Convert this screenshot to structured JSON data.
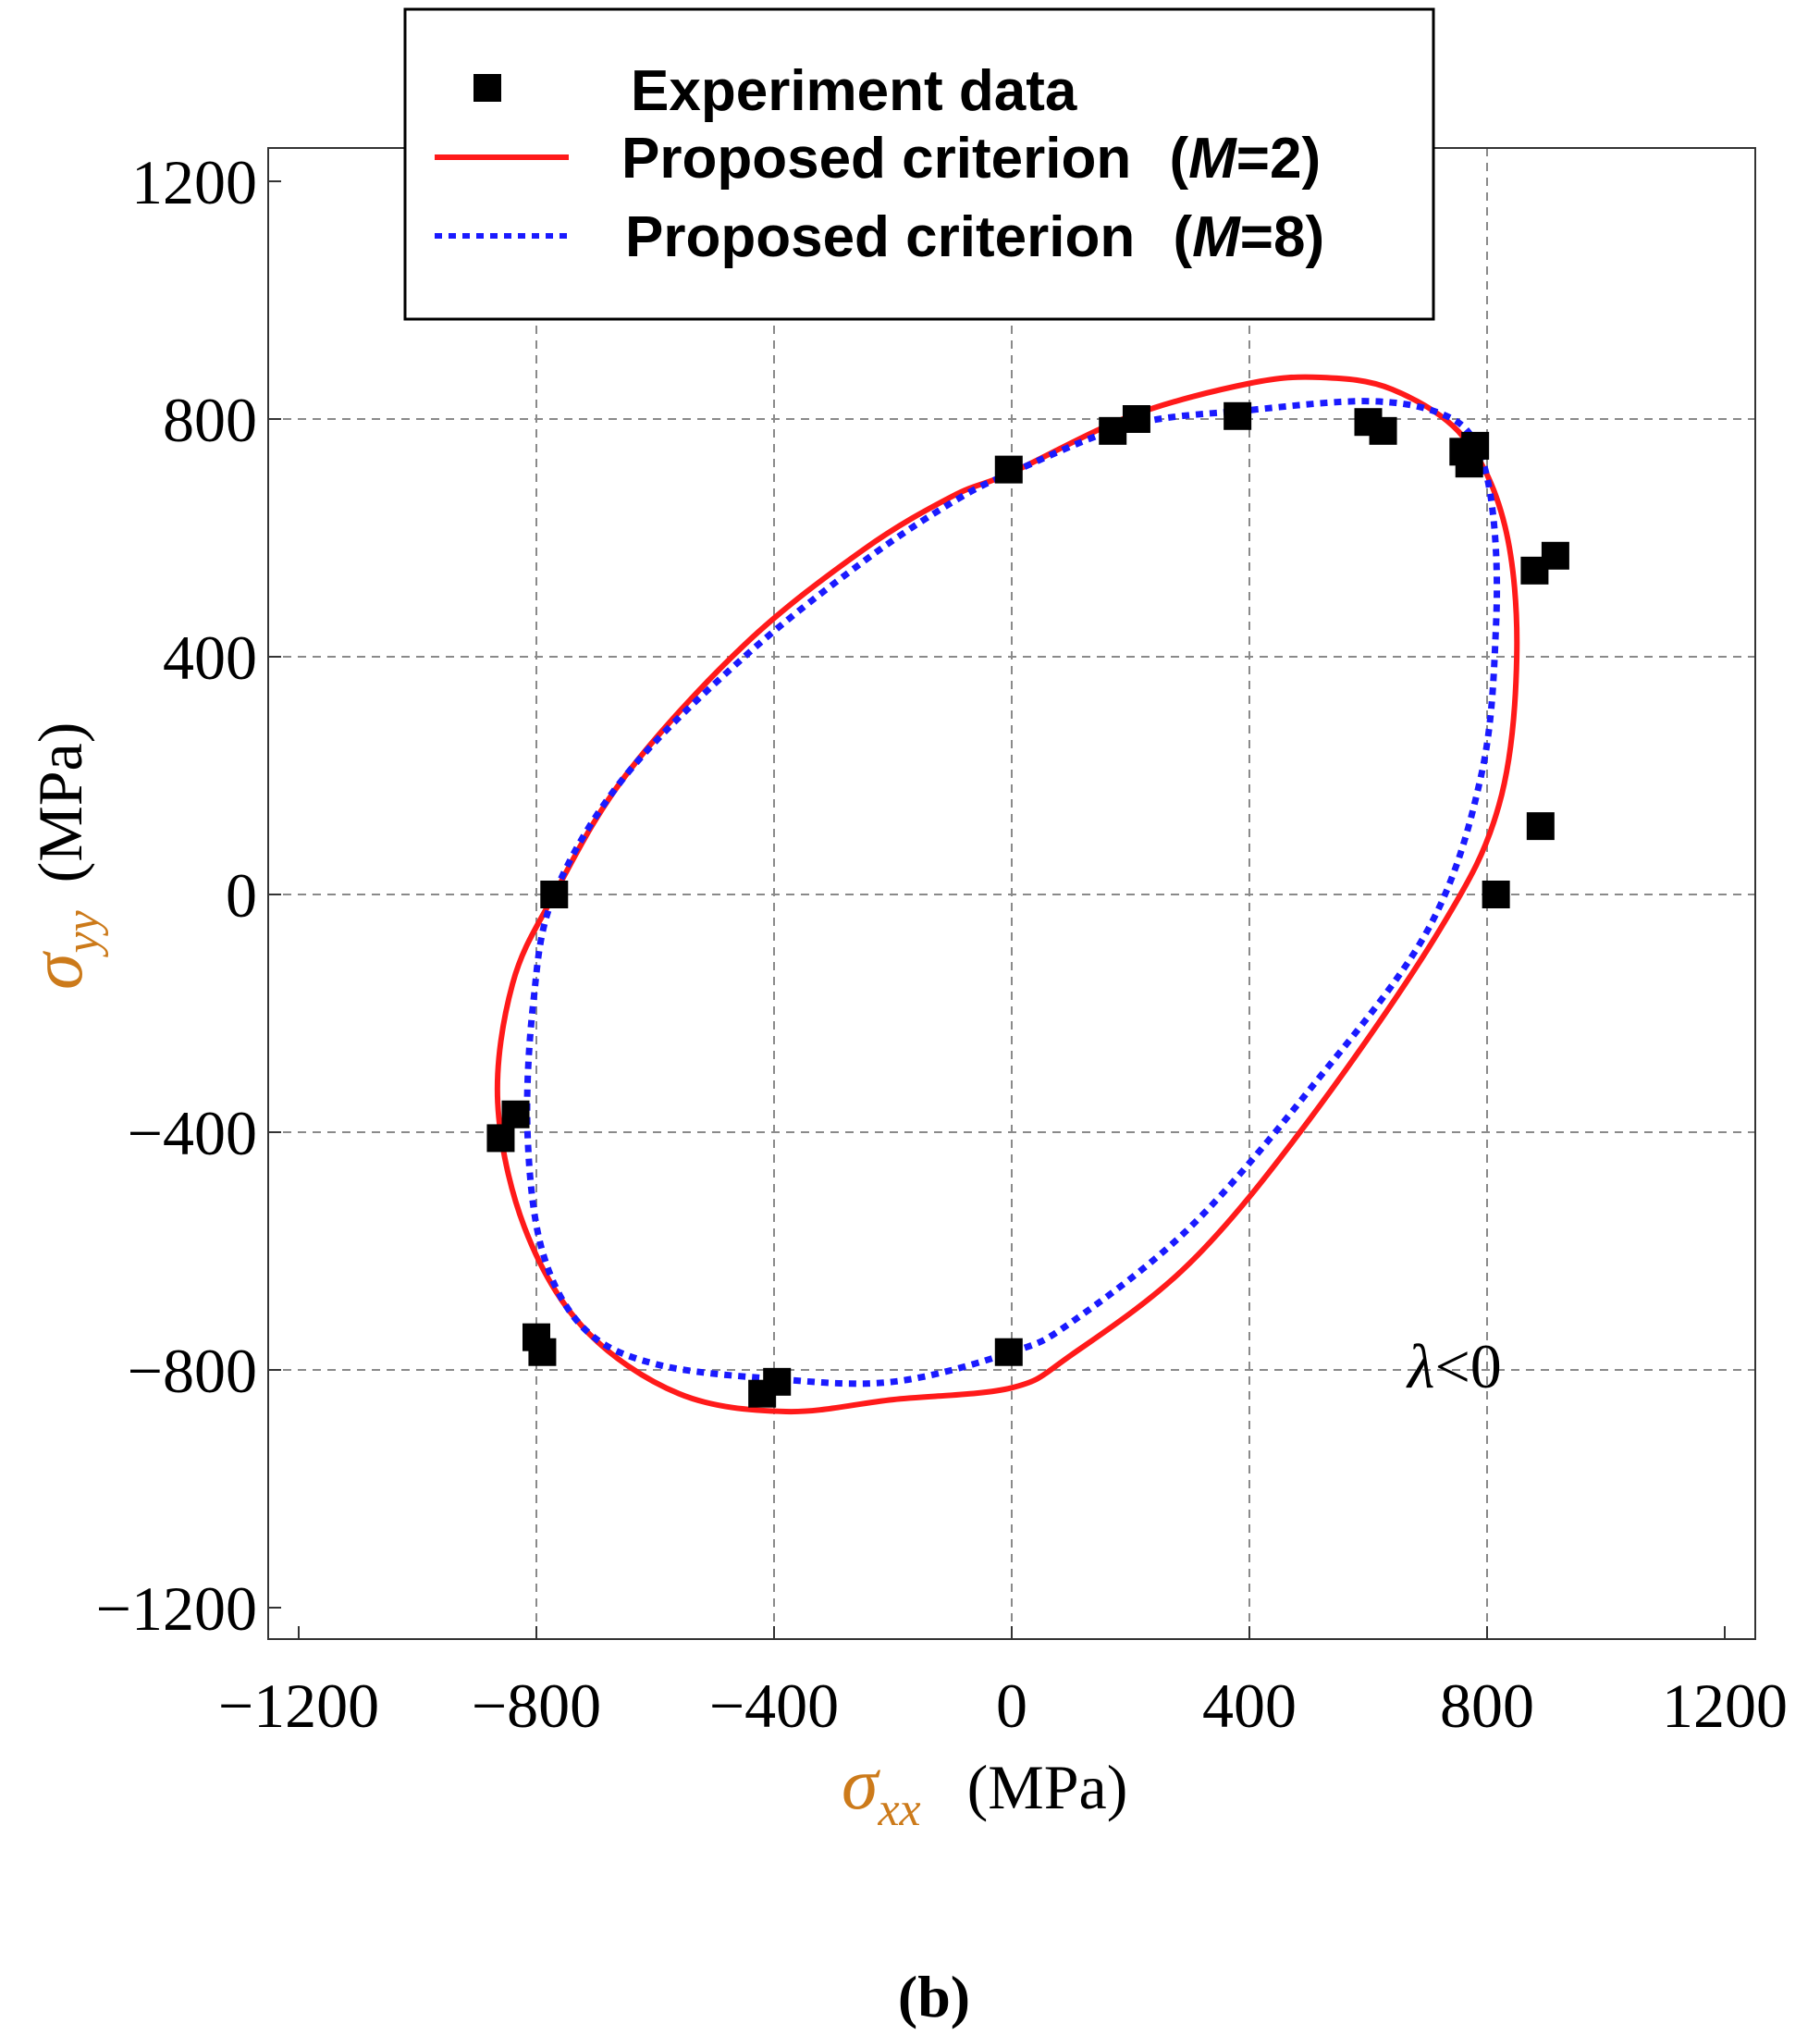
{
  "chart_data": {
    "type": "scatter",
    "panel_label": "(b)",
    "xlabel": {
      "symbol": "σ",
      "subscript": "xx",
      "unit": "(MPa)"
    },
    "ylabel": {
      "symbol": "σ",
      "subscript": "yy",
      "unit": "(MPa)"
    },
    "xlim": [
      -1200,
      1200
    ],
    "ylim": [
      -1200,
      1200
    ],
    "xticks": [
      -1200,
      -800,
      -400,
      0,
      400,
      800,
      1200
    ],
    "yticks": [
      -1200,
      -800,
      -400,
      0,
      400,
      800,
      1200
    ],
    "xtick_labels": [
      "−1200",
      "−800",
      "−400",
      "0",
      "400",
      "800",
      "1200"
    ],
    "ytick_labels": [
      "−1200",
      "−800",
      "−400",
      "0",
      "400",
      "800",
      "1200"
    ],
    "grid": true,
    "annotation": {
      "symbol": "λ",
      "text": "<0"
    },
    "legend": {
      "placement": "top-center",
      "entries": [
        {
          "label": "Experiment data",
          "param": ""
        },
        {
          "label": "Proposed criterion",
          "param_open": "(",
          "param_var": "M",
          "param_rest": "=2)"
        },
        {
          "label": "Proposed criterion",
          "param_open": "(",
          "param_var": "M",
          "param_rest": "=8)"
        }
      ]
    },
    "series": [
      {
        "name": "Experiment data",
        "kind": "scatter",
        "color": "#000000",
        "points": [
          [
            -5,
            715
          ],
          [
            170,
            780
          ],
          [
            210,
            800
          ],
          [
            380,
            805
          ],
          [
            600,
            795
          ],
          [
            625,
            780
          ],
          [
            760,
            745
          ],
          [
            780,
            755
          ],
          [
            770,
            725
          ],
          [
            880,
            545
          ],
          [
            915,
            570
          ],
          [
            890,
            115
          ],
          [
            815,
            0
          ],
          [
            -770,
            0
          ],
          [
            -835,
            -370
          ],
          [
            -860,
            -410
          ],
          [
            -800,
            -745
          ],
          [
            -790,
            -770
          ],
          [
            -5,
            -770
          ],
          [
            -395,
            -820
          ],
          [
            -420,
            -840
          ]
        ]
      },
      {
        "name": "Proposed criterion (M=2)",
        "kind": "line",
        "color": "#ff1a1a",
        "style": "solid",
        "points": [
          [
            0,
            710
          ],
          [
            200,
            805
          ],
          [
            400,
            860
          ],
          [
            520,
            870
          ],
          [
            640,
            850
          ],
          [
            760,
            770
          ],
          [
            830,
            620
          ],
          [
            850,
            400
          ],
          [
            820,
            150
          ],
          [
            720,
            -60
          ],
          [
            500,
            -380
          ],
          [
            300,
            -620
          ],
          [
            100,
            -775
          ],
          [
            0,
            -830
          ],
          [
            -200,
            -850
          ],
          [
            -380,
            -870
          ],
          [
            -560,
            -840
          ],
          [
            -720,
            -730
          ],
          [
            -820,
            -560
          ],
          [
            -865,
            -350
          ],
          [
            -840,
            -150
          ],
          [
            -770,
            0
          ],
          [
            -650,
            200
          ],
          [
            -450,
            420
          ],
          [
            -250,
            580
          ],
          [
            -100,
            670
          ],
          [
            0,
            710
          ]
        ]
      },
      {
        "name": "Proposed criterion (M=8)",
        "kind": "line",
        "color": "#1a1aff",
        "style": "dotted",
        "points": [
          [
            0,
            710
          ],
          [
            200,
            790
          ],
          [
            400,
            815
          ],
          [
            600,
            830
          ],
          [
            720,
            810
          ],
          [
            780,
            760
          ],
          [
            810,
            640
          ],
          [
            815,
            450
          ],
          [
            790,
            200
          ],
          [
            700,
            -60
          ],
          [
            500,
            -330
          ],
          [
            300,
            -560
          ],
          [
            100,
            -720
          ],
          [
            0,
            -770
          ],
          [
            -200,
            -820
          ],
          [
            -400,
            -815
          ],
          [
            -600,
            -790
          ],
          [
            -720,
            -730
          ],
          [
            -790,
            -600
          ],
          [
            -815,
            -400
          ],
          [
            -805,
            -180
          ],
          [
            -770,
            0
          ],
          [
            -650,
            200
          ],
          [
            -450,
            400
          ],
          [
            -250,
            560
          ],
          [
            -100,
            660
          ],
          [
            0,
            710
          ]
        ]
      }
    ]
  }
}
